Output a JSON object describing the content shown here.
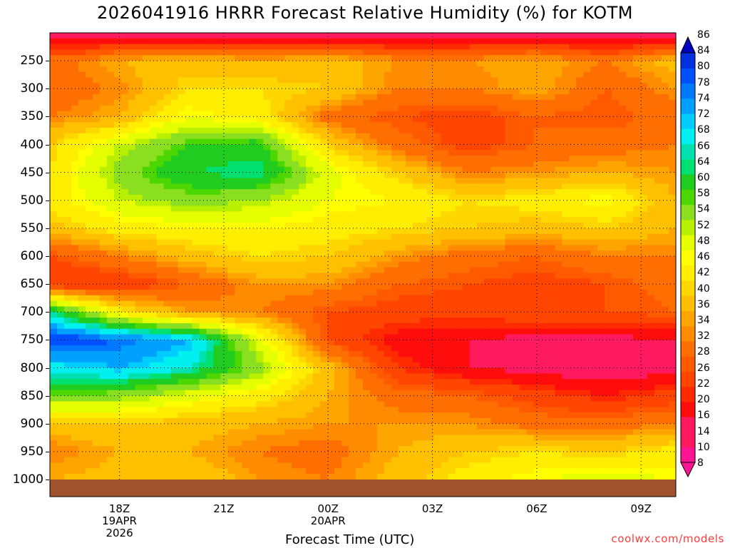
{
  "title": "2026041916 HRRR Forecast Relative Humidity (%) for KOTM",
  "credit": "coolwx.com/models",
  "chart_data": {
    "type": "heatmap",
    "title": "2026041916 HRRR Forecast Relative Humidity (%) for KOTM",
    "xlabel": "Forecast Time (UTC)",
    "ylabel": "",
    "x_unit": "hours since 2026-04-19 16Z",
    "y_unit": "hPa",
    "xlim": [
      16,
      34
    ],
    "ylim": [
      1000,
      200
    ],
    "x_ticks": [
      {
        "x": 18,
        "lines": [
          "18Z",
          "19APR",
          "2026"
        ]
      },
      {
        "x": 21,
        "lines": [
          "21Z"
        ]
      },
      {
        "x": 24,
        "lines": [
          "00Z",
          "20APR"
        ]
      },
      {
        "x": 27,
        "lines": [
          "03Z"
        ]
      },
      {
        "x": 30,
        "lines": [
          "06Z"
        ]
      },
      {
        "x": 33,
        "lines": [
          "09Z"
        ]
      }
    ],
    "y_ticks": [
      250,
      300,
      350,
      400,
      450,
      500,
      550,
      600,
      650,
      700,
      750,
      800,
      850,
      900,
      950,
      1000
    ],
    "grid": true,
    "colorbar_labels": [
      8,
      10,
      14,
      16,
      20,
      22,
      26,
      28,
      32,
      34,
      36,
      40,
      42,
      46,
      48,
      52,
      54,
      58,
      60,
      64,
      66,
      68,
      72,
      74,
      78,
      80,
      84,
      86
    ],
    "colorbar_colors": [
      "#ff1493",
      "#ff1493",
      "#ff1a60",
      "#ff1a60",
      "#ff0d0d",
      "#ff2a00",
      "#ff4500",
      "#ff5a00",
      "#ff6e00",
      "#ff8c00",
      "#ffa500",
      "#ffc000",
      "#ffd700",
      "#ffee00",
      "#ffff00",
      "#e6ff00",
      "#b8f000",
      "#8ae020",
      "#4cd700",
      "#20cc20",
      "#00e070",
      "#00e0b0",
      "#00f0f0",
      "#00ccff",
      "#00a0ff",
      "#0078ff",
      "#0050ff",
      "#0030e0",
      "#0000c0"
    ],
    "x": [
      16,
      18,
      20,
      22,
      24,
      26,
      28,
      30,
      32,
      34
    ],
    "y": [
      200,
      250,
      300,
      350,
      400,
      450,
      500,
      550,
      600,
      650,
      700,
      750,
      800,
      850,
      900,
      950,
      1000
    ],
    "values": [
      [
        10,
        10,
        10,
        10,
        10,
        9,
        10,
        10,
        10,
        9
      ],
      [
        30,
        36,
        38,
        36,
        38,
        34,
        34,
        36,
        32,
        38
      ],
      [
        28,
        33,
        42,
        42,
        40,
        32,
        32,
        36,
        28,
        34
      ],
      [
        32,
        36,
        48,
        44,
        30,
        26,
        24,
        28,
        26,
        30
      ],
      [
        40,
        52,
        60,
        62,
        40,
        30,
        24,
        28,
        30,
        32
      ],
      [
        42,
        56,
        64,
        66,
        50,
        40,
        32,
        34,
        36,
        34
      ],
      [
        44,
        52,
        56,
        54,
        48,
        46,
        42,
        44,
        48,
        36
      ],
      [
        38,
        44,
        46,
        46,
        44,
        42,
        40,
        38,
        40,
        36
      ],
      [
        26,
        32,
        38,
        42,
        40,
        34,
        30,
        28,
        32,
        32
      ],
      [
        22,
        22,
        28,
        34,
        34,
        28,
        26,
        24,
        26,
        30
      ],
      [
        66,
        44,
        34,
        32,
        26,
        24,
        24,
        26,
        26,
        28
      ],
      [
        84,
        80,
        74,
        50,
        26,
        18,
        16,
        14,
        14,
        16
      ],
      [
        70,
        74,
        68,
        56,
        38,
        22,
        16,
        14,
        12,
        14
      ],
      [
        58,
        56,
        50,
        44,
        36,
        30,
        28,
        24,
        20,
        24
      ],
      [
        38,
        40,
        38,
        36,
        34,
        34,
        34,
        30,
        30,
        32
      ],
      [
        32,
        36,
        36,
        32,
        30,
        36,
        40,
        42,
        40,
        44
      ],
      [
        36,
        38,
        40,
        34,
        32,
        38,
        44,
        48,
        50,
        48
      ]
    ]
  }
}
